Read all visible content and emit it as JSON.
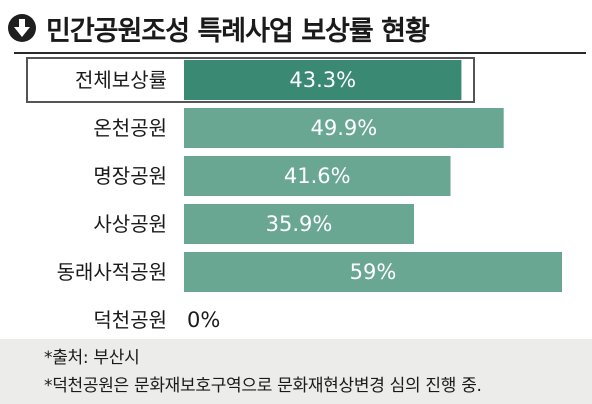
{
  "title": "민간공원조성 특례사업 보상률 현황",
  "title_icon": "down-arrow-circle-icon",
  "colors": {
    "highlight_bar": "#3a8a73",
    "bar": "#6aa793",
    "bar_label": "#ffffff",
    "text": "#1a1a1a",
    "footnote_background": "#ececea"
  },
  "chart_data": {
    "type": "bar",
    "orientation": "horizontal",
    "categories": [
      "전체보상률",
      "온천공원",
      "명장공원",
      "사상공원",
      "동래사적공원",
      "덕천공원"
    ],
    "values": [
      43.3,
      49.9,
      41.6,
      35.9,
      59,
      0
    ],
    "value_labels": [
      "43.3%",
      "49.9%",
      "41.6%",
      "35.9%",
      "59%",
      "0%"
    ],
    "unit": "%",
    "highlighted_category": "전체보상률",
    "xlim": [
      0,
      59
    ],
    "grid": false,
    "legend": "none"
  },
  "footnotes": [
    "*출처: 부산시",
    "*덕천공원은 문화재보호구역으로 문화재현상변경 심의 진행 중."
  ]
}
